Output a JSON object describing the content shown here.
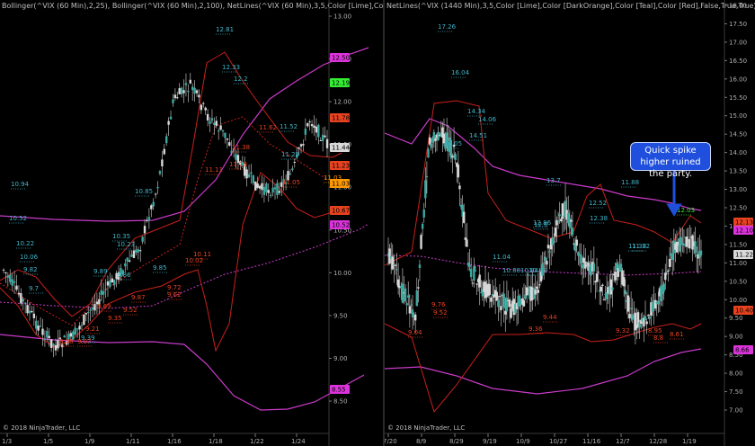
{
  "left": {
    "header": "Bollinger(^VIX (60 Min),2,25), Bollinger(^VIX (60 Min),2,100), NetLines(^VIX (60 Min),3,5,Color [Lime],Color [DarkOrange],Co",
    "copyright": "© 2018 NinjaTrader, LLC",
    "price_axis": [
      "13.00",
      "12.50",
      "12.00",
      "11.50",
      "11.00",
      "10.50",
      "10.00",
      "9.50",
      "9.00",
      "8.50"
    ],
    "date_axis": [
      "1/3",
      "1/5",
      "1/9",
      "1/11",
      "1/16",
      "1/18",
      "1/22",
      "1/24"
    ],
    "badges": [
      {
        "text": "12.50",
        "color": "#dd33dd"
      },
      {
        "text": "12.19",
        "color": "#33ee33"
      },
      {
        "text": "11.78",
        "color": "#e8421f"
      },
      {
        "text": "11.44",
        "color": "#d9d9d9"
      },
      {
        "text": "11.23",
        "color": "#e8421f"
      },
      {
        "text": "11.03",
        "color": "#ff9900"
      },
      {
        "text": "10.67",
        "color": "#e8421f"
      },
      {
        "text": "10.52",
        "color": "#dd33dd"
      },
      {
        "text": "8.55",
        "color": "#dd33dd"
      }
    ],
    "labels_teal": [
      "12.81",
      "12.33",
      "12.2",
      "11.52",
      "11.29",
      "10.94",
      "10.85",
      "10.52",
      "10.35",
      "10.23",
      "10.22",
      "10.06",
      "9.89",
      "9.86",
      "9.85",
      "9.82",
      "9.7",
      "9.39"
    ],
    "labels_red": [
      "11.62",
      "11.38",
      "11.18",
      "11.11",
      "11.05",
      "10.11",
      "10.02",
      "9.87",
      "9.72",
      "9.69",
      "9.62",
      "9.52",
      "9.35",
      "9.21",
      "9.08",
      "9.07"
    ],
    "labels_orange": [
      "11.03"
    ]
  },
  "right": {
    "header": "NetLines(^VIX (1440 Min),3,5,Color [Lime],Color [DarkOrange],Color [Teal],Color [Red],False,True,True), Bollinger(^VIX (1",
    "copyright": "© 2018 NinjaTrader, LLC",
    "price_axis": [
      "18.00",
      "17.50",
      "17.00",
      "16.50",
      "16.00",
      "15.50",
      "15.00",
      "14.50",
      "14.00",
      "13.50",
      "13.00",
      "12.50",
      "12.00",
      "11.50",
      "11.00",
      "10.50",
      "10.00",
      "9.50",
      "9.00",
      "8.50",
      "8.00",
      "7.50",
      "7.00"
    ],
    "date_axis": [
      "7/20",
      "8/9",
      "8/29",
      "9/19",
      "10/9",
      "10/27",
      "11/16",
      "12/7",
      "12/28",
      "1/19"
    ],
    "badges": [
      {
        "text": "12.13",
        "color": "#e8421f"
      },
      {
        "text": "12.10",
        "color": "#dd33dd"
      },
      {
        "text": "11.22",
        "color": "#d9d9d9"
      },
      {
        "text": "10.40",
        "color": "#e8421f"
      },
      {
        "text": "8.66",
        "color": "#dd33dd"
      }
    ],
    "labels_teal": [
      "17.26",
      "16.04",
      "14.51",
      "14.34",
      "14.06",
      "14.05",
      "13.7",
      "12.86",
      "12.6",
      "12.52",
      "12.38",
      "11.88",
      "11.38",
      "11.32",
      "11.04",
      "10.84",
      "10.87",
      "10.88"
    ],
    "labels_red": [
      "9.76",
      "9.52",
      "9.04",
      "9.44",
      "9.36",
      "9.32",
      "8.95",
      "8.8",
      "8.61"
    ],
    "labels_lime": [
      "12.03"
    ],
    "callout": "Quick spike higher ruined the party."
  }
}
